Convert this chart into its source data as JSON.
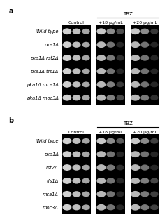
{
  "panel_a": {
    "label": "a",
    "strains": [
      "Wild type",
      "pka1Δ",
      "pka1Δ rst2Δ",
      "pka1Δ tfs1Δ",
      "pka1Δ mca1Δ",
      "pka1Δ moc3Δ"
    ],
    "conditions": [
      "Control",
      "+18 μg/mL",
      "+20 μg/mL"
    ],
    "tbz_label": "TBZ",
    "spot_brightness": [
      [
        0.82,
        0.75,
        0.65,
        0.78,
        0.55,
        0.3,
        0.78,
        0.55,
        0.22
      ],
      [
        0.82,
        0.75,
        0.65,
        0.72,
        0.45,
        0.15,
        0.72,
        0.45,
        0.15
      ],
      [
        0.82,
        0.75,
        0.65,
        0.72,
        0.48,
        0.18,
        0.72,
        0.45,
        0.15
      ],
      [
        0.82,
        0.75,
        0.65,
        0.72,
        0.45,
        0.15,
        0.72,
        0.45,
        0.15
      ],
      [
        0.82,
        0.75,
        0.65,
        0.72,
        0.5,
        0.22,
        0.72,
        0.45,
        0.15
      ],
      [
        0.82,
        0.75,
        0.65,
        0.72,
        0.5,
        0.28,
        0.72,
        0.48,
        0.18
      ]
    ]
  },
  "panel_b": {
    "label": "b",
    "strains": [
      "Wild type",
      "pka1Δ",
      "rst2Δ",
      "tfs1Δ",
      "mca1Δ",
      "moc3Δ"
    ],
    "conditions": [
      "Control",
      "+18 μg/mL",
      "+20 μg/mL"
    ],
    "tbz_label": "TBZ",
    "spot_brightness": [
      [
        0.82,
        0.75,
        0.65,
        0.78,
        0.55,
        0.35,
        0.78,
        0.55,
        0.25
      ],
      [
        0.82,
        0.75,
        0.65,
        0.72,
        0.45,
        0.15,
        0.72,
        0.45,
        0.15
      ],
      [
        0.82,
        0.75,
        0.65,
        0.72,
        0.48,
        0.18,
        0.72,
        0.45,
        0.15
      ],
      [
        0.82,
        0.75,
        0.65,
        0.72,
        0.45,
        0.15,
        0.72,
        0.5,
        0.28
      ],
      [
        0.82,
        0.75,
        0.65,
        0.72,
        0.45,
        0.15,
        0.72,
        0.48,
        0.25
      ],
      [
        0.82,
        0.75,
        0.65,
        0.72,
        0.45,
        0.15,
        0.72,
        0.48,
        0.25
      ]
    ]
  },
  "fig_bg": "#ffffff",
  "panel_bg": "#f2f2f2",
  "font_size_strain": 4.8,
  "font_size_cond": 4.5,
  "font_size_panel": 7.0,
  "font_size_tbz": 5.0
}
